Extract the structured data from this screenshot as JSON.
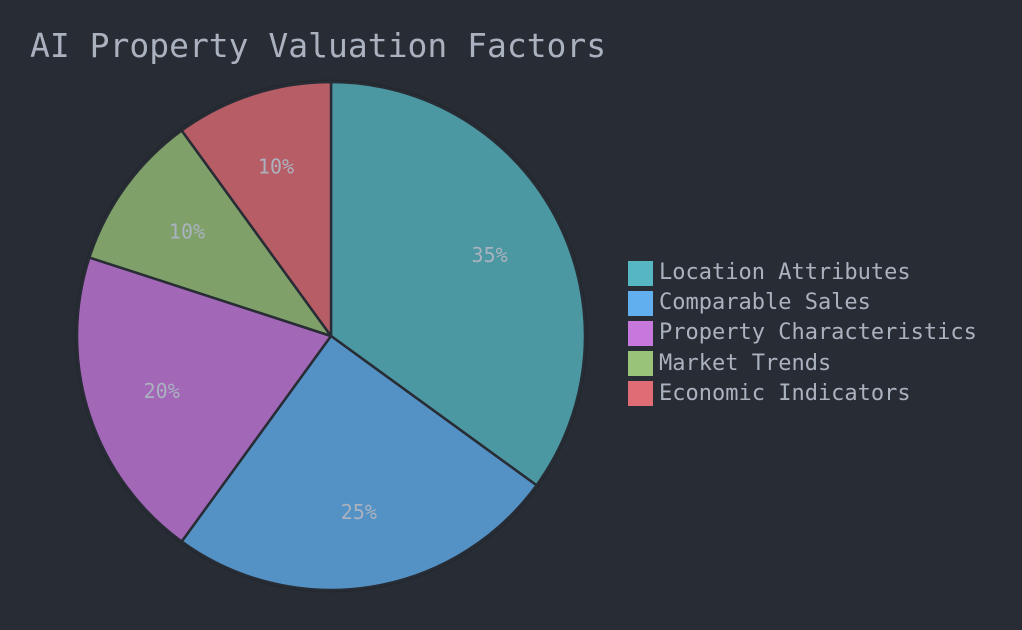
{
  "chart_data": {
    "type": "pie",
    "title": "AI Property Valuation Factors",
    "categories": [
      "Location Attributes",
      "Comparable Sales",
      "Property Characteristics",
      "Market Trends",
      "Economic Indicators"
    ],
    "values": [
      35,
      25,
      20,
      10,
      10
    ],
    "value_labels": [
      "35%",
      "25%",
      "20%",
      "10%",
      "10%"
    ],
    "colors": [
      "#56b6c2",
      "#61afef",
      "#c678dd",
      "#98c379",
      "#e06c75"
    ],
    "start_angle": "12 o'clock, clockwise",
    "legend_position": "right"
  }
}
